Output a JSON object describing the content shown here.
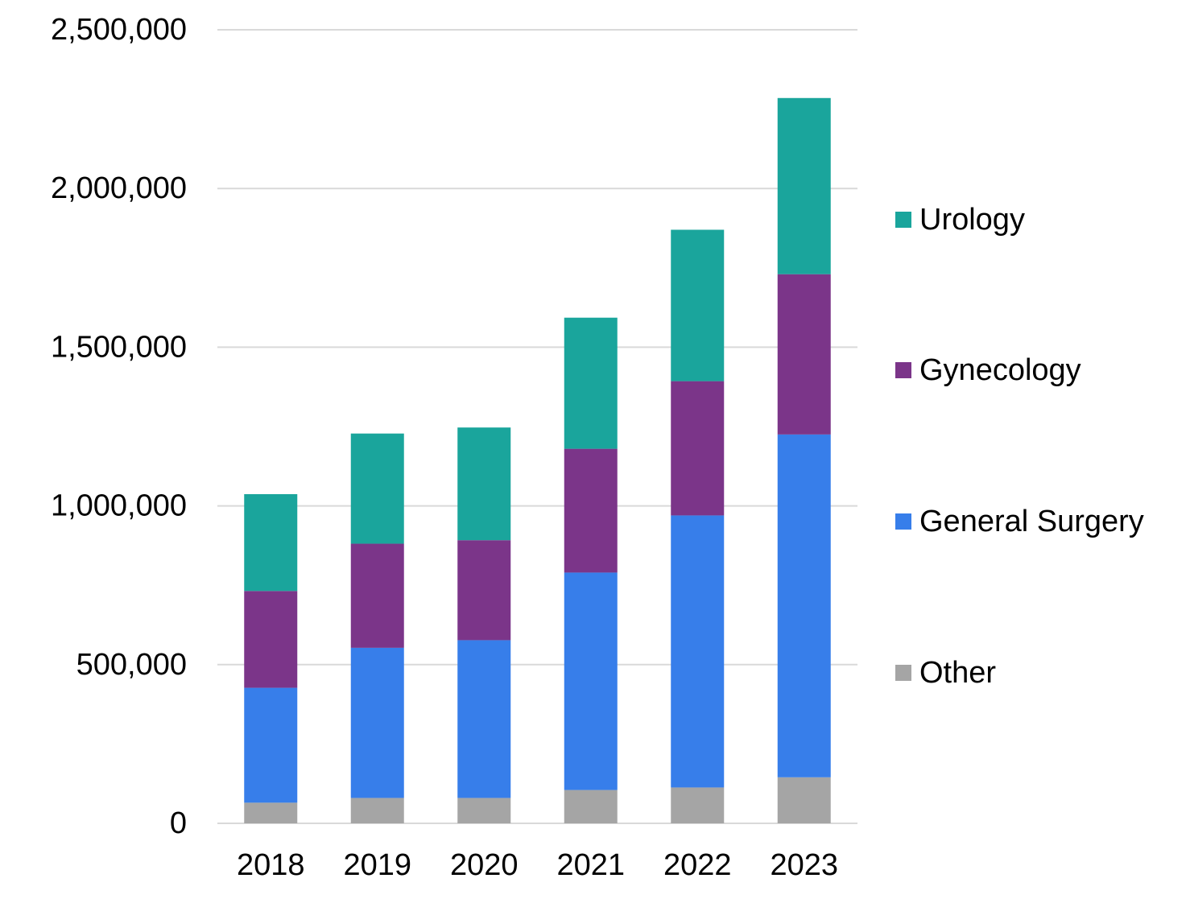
{
  "chart_data": {
    "type": "bar",
    "stacked": true,
    "title": "",
    "xlabel": "",
    "ylabel": "",
    "categories": [
      "2018",
      "2019",
      "2020",
      "2021",
      "2022",
      "2023"
    ],
    "series": [
      {
        "name": "Other",
        "color": "#a5a5a5",
        "values": [
          65000,
          80000,
          80000,
          105000,
          113000,
          145000
        ]
      },
      {
        "name": "General Surgery",
        "color": "#377eea",
        "values": [
          362000,
          473000,
          497000,
          685000,
          857000,
          1080000
        ]
      },
      {
        "name": "Gynecology",
        "color": "#7b3589",
        "values": [
          305000,
          328000,
          315000,
          390000,
          423000,
          505000
        ]
      },
      {
        "name": "Urology",
        "color": "#1aa59c",
        "values": [
          305000,
          347000,
          355000,
          413000,
          477000,
          555000
        ]
      }
    ],
    "ylim": [
      0,
      2500000
    ],
    "yticks": [
      0,
      500000,
      1000000,
      1500000,
      2000000,
      2500000
    ],
    "ytick_labels": [
      "0",
      "500,000",
      "1,000,000",
      "1,500,000",
      "2,000,000",
      "2,500,000"
    ],
    "grid": true,
    "legend_position": "right",
    "legend_order": [
      "Urology",
      "Gynecology",
      "General Surgery",
      "Other"
    ]
  }
}
